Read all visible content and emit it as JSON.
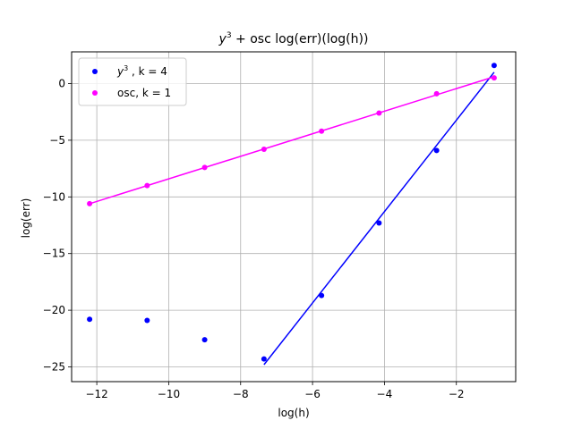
{
  "chart_data": {
    "type": "scatter",
    "title": {
      "math_base": "y",
      "math_exp": "3",
      "rest": " + osc  log(err)(log(h))"
    },
    "xlabel": "log(h)",
    "ylabel": "log(err)",
    "xlim": [
      -12.7,
      -0.35
    ],
    "ylim": [
      -26.3,
      2.8
    ],
    "xticks": [
      -12,
      -10,
      -8,
      -6,
      -4,
      -2
    ],
    "yticks": [
      0,
      -5,
      -10,
      -15,
      -20,
      -25
    ],
    "xtick_labels": [
      "−12",
      "−10",
      "−8",
      "−6",
      "−4",
      "−2"
    ],
    "ytick_labels": [
      "0",
      "−5",
      "−10",
      "−15",
      "−20",
      "−25"
    ],
    "grid": true,
    "legend_position": "top-left",
    "series": [
      {
        "legend": {
          "math_base": "y",
          "math_exp": "3",
          "rest": " , k = 4"
        },
        "color": "#0000ff",
        "points": [
          [
            -12.2,
            -20.8
          ],
          [
            -10.6,
            -20.9
          ],
          [
            -9.0,
            -22.6
          ],
          [
            -7.35,
            -24.3
          ],
          [
            -5.75,
            -18.7
          ],
          [
            -4.15,
            -12.3
          ],
          [
            -2.55,
            -5.9
          ],
          [
            -0.95,
            1.6
          ]
        ],
        "fit_line": [
          [
            -7.35,
            -24.8
          ],
          [
            -0.95,
            1.0
          ]
        ]
      },
      {
        "legend": {
          "rest": "osc, k = 1"
        },
        "color": "#ff00ff",
        "points": [
          [
            -12.2,
            -10.6
          ],
          [
            -10.6,
            -9.0
          ],
          [
            -9.0,
            -7.4
          ],
          [
            -7.35,
            -5.8
          ],
          [
            -5.75,
            -4.2
          ],
          [
            -4.15,
            -2.6
          ],
          [
            -2.55,
            -0.9
          ],
          [
            -0.95,
            0.5
          ]
        ],
        "fit_line": [
          [
            -12.2,
            -10.6
          ],
          [
            -0.95,
            0.6
          ]
        ]
      }
    ]
  }
}
